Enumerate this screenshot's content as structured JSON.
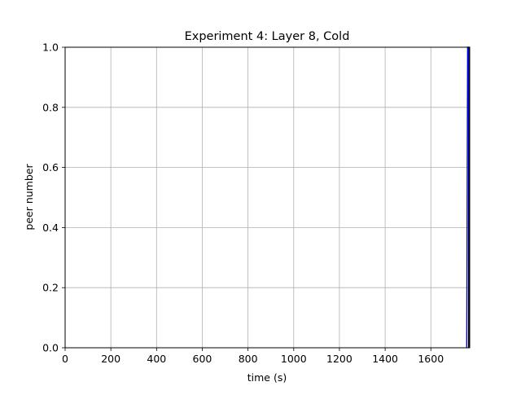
{
  "chart_data": {
    "type": "line",
    "title": "Experiment 4: Layer 8, Cold",
    "xlabel": "time (s)",
    "ylabel": "peer number",
    "xlim": [
      0,
      1770
    ],
    "ylim": [
      0.0,
      1.0
    ],
    "xticks": [
      0,
      200,
      400,
      600,
      800,
      1000,
      1200,
      1400,
      1600
    ],
    "xtick_labels": [
      "0",
      "200",
      "400",
      "600",
      "800",
      "1000",
      "1200",
      "1400",
      "1600"
    ],
    "yticks": [
      0.0,
      0.2,
      0.4,
      0.6,
      0.8,
      1.0
    ],
    "ytick_labels": [
      "0.0",
      "0.2",
      "0.4",
      "0.6",
      "0.8",
      "1.0"
    ],
    "grid": true,
    "series": [
      {
        "color": "#0000ff",
        "x": [
          1757,
          1761,
          1765,
          1768,
          1770
        ],
        "y": [
          0,
          1,
          1,
          1,
          1
        ]
      }
    ],
    "markers": [
      {
        "color": "#000000",
        "x": 1770,
        "y": 1
      }
    ]
  }
}
